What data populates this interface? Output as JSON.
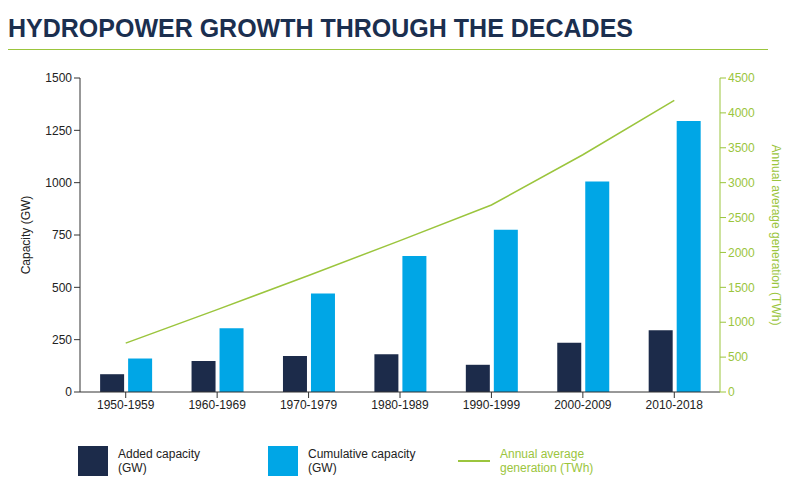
{
  "chart_data": {
    "type": "bar",
    "title": "HYDROPOWER GROWTH THROUGH THE DECADES",
    "categories": [
      "1950-1959",
      "1960-1969",
      "1970-1979",
      "1980-1989",
      "1990-1999",
      "2000-2009",
      "2010-2018"
    ],
    "series": [
      {
        "name": "Added capacity (GW)",
        "type": "bar",
        "color": "#1c2b4a",
        "values": [
          85,
          148,
          172,
          180,
          130,
          235,
          295
        ]
      },
      {
        "name": "Cumulative capacity (GW)",
        "type": "bar",
        "color": "#00a6e6",
        "values": [
          160,
          305,
          470,
          650,
          775,
          1005,
          1295
        ]
      },
      {
        "name": "Annual average generation (TWh)",
        "type": "line",
        "axis": "y2",
        "color": "#9bc53d",
        "values": [
          700,
          1180,
          1670,
          2170,
          2680,
          3400,
          4180
        ]
      }
    ],
    "y_label": "Capacity (GW)",
    "y2_label": "Annual average generation (TWh)",
    "ylim": [
      0,
      1500
    ],
    "yticks": [
      0,
      250,
      500,
      750,
      1000,
      1250,
      1500
    ],
    "y2lim": [
      0,
      4500
    ],
    "y2ticks": [
      0,
      500,
      1000,
      1500,
      2000,
      2500,
      3000,
      3500,
      4000,
      4500
    ],
    "grid": false,
    "legend": "bottom"
  }
}
